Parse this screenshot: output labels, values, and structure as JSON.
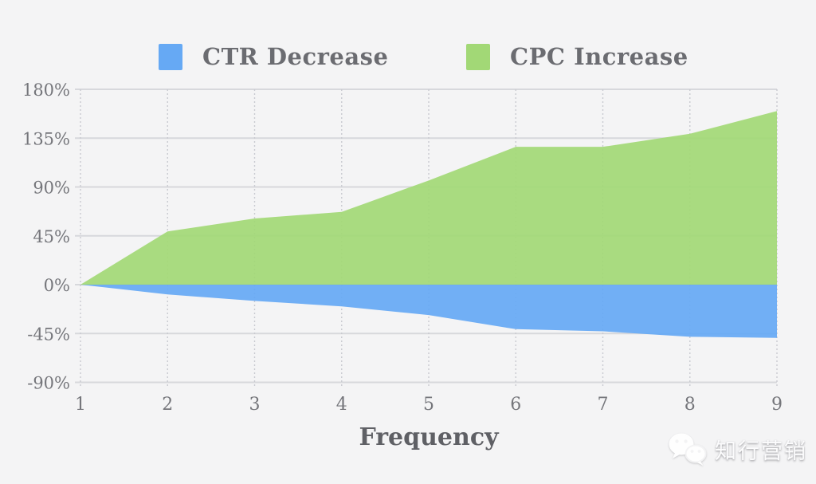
{
  "chart_data": {
    "type": "area",
    "title": "",
    "xlabel": "Frequency",
    "ylabel": "",
    "x": [
      1,
      2,
      3,
      4,
      5,
      6,
      7,
      8,
      9
    ],
    "xtick_labels": [
      "1",
      "2",
      "3",
      "4",
      "5",
      "6",
      "7",
      "8",
      "9"
    ],
    "ylim": [
      -90,
      180
    ],
    "yticks": [
      180,
      135,
      90,
      45,
      0,
      -45,
      -90
    ],
    "ytick_labels": [
      "180%",
      "135%",
      "90%",
      "45%",
      "0%",
      "-45%",
      "-90%"
    ],
    "grid": true,
    "legend_position": "top",
    "baseline": 0,
    "series": [
      {
        "name": "CTR Decrease",
        "color": "#66a9f4",
        "values": [
          0,
          -9,
          -15,
          -20,
          -28,
          -41,
          -43,
          -48,
          -49
        ]
      },
      {
        "name": "CPC Increase",
        "color": "#a2d876",
        "values": [
          0,
          49,
          61,
          67,
          96,
          127,
          127,
          139,
          160
        ]
      }
    ]
  },
  "watermark": {
    "text": "知行营销",
    "icon": "wechat-icon"
  },
  "colors": {
    "background": "#f4f4f5",
    "grid_solid": "#d7d8dc",
    "grid_dotted": "#c9cad0",
    "tick_text": "#75767b",
    "legend_text": "#6b6c71",
    "axis_title_text": "#5f6065"
  }
}
